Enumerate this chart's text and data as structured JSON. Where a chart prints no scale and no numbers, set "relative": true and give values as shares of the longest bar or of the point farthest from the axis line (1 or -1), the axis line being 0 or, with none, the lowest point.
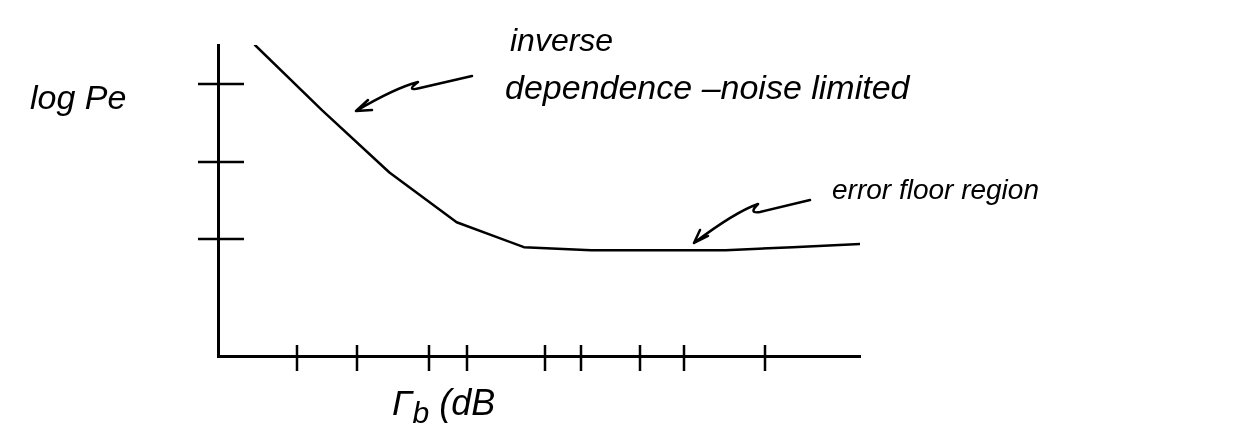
{
  "chart_data": {
    "type": "line",
    "relative": true,
    "xlabel": "Γ$_{b}$ (dB",
    "ylabel": "log Pe",
    "categories": [
      null,
      null,
      null,
      null,
      null,
      null,
      null,
      null,
      null,
      null
    ],
    "series": [
      {
        "color": "#000000",
        "values": [
          1,
          0.79,
          0.59,
          0.43,
          0.35,
          0.34,
          0.34,
          0.34,
          0.35,
          0.36
        ]
      }
    ],
    "annotations": [
      "inverse",
      "dependence –noise limited",
      "error floor region"
    ],
    "marker": "none",
    "line_style": "solid",
    "grid": false,
    "legend": false
  }
}
